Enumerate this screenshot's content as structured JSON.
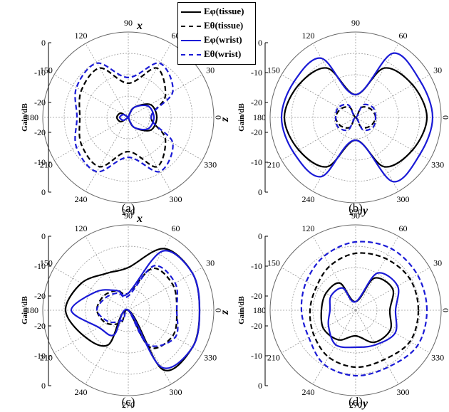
{
  "legend": [
    {
      "label": "Eφ(tissue)",
      "color": "#000000",
      "dash": false
    },
    {
      "label": "Eθ(tissue)",
      "color": "#000000",
      "dash": true
    },
    {
      "label": "Eφ(wrist)",
      "color": "#1a1ad6",
      "dash": false
    },
    {
      "label": "Eθ(wrist)",
      "color": "#1a1ad6",
      "dash": true
    }
  ],
  "chart_data": [
    {
      "type": "line",
      "coordinate_system": "polar",
      "panel_label": "(a)",
      "ylabel": "Gain/dB",
      "radial_ticks": [
        "0",
        "-10",
        "-20",
        "-20",
        "-10",
        "0"
      ],
      "radial_range_dB": [
        -30,
        0
      ],
      "angle_ticks_deg": [
        0,
        30,
        60,
        90,
        120,
        150,
        180,
        210,
        240,
        270,
        300,
        330
      ],
      "axis_labels": [
        {
          "text": "x",
          "angle": 90
        },
        {
          "text": "z",
          "angle": 0
        }
      ],
      "grid": true,
      "series": [
        {
          "name": "Eφ(tissue)",
          "angle": [
            0,
            30,
            60,
            90,
            120,
            150,
            180,
            210,
            240,
            270,
            300,
            330
          ],
          "gain_dB": [
            -20,
            -21,
            -26,
            -30,
            -30,
            -27,
            -26,
            -27,
            -30,
            -30,
            -26,
            -21
          ]
        },
        {
          "name": "Eθ(tissue)",
          "angle": [
            0,
            30,
            60,
            90,
            120,
            150,
            180,
            210,
            240,
            270,
            300,
            330
          ],
          "gain_dB": [
            -22,
            -15,
            -10,
            -18,
            -10,
            -11,
            -13,
            -11,
            -10,
            -18,
            -10,
            -15
          ]
        },
        {
          "name": "Eφ(wrist)",
          "angle": [
            0,
            30,
            60,
            90,
            120,
            150,
            180,
            210,
            240,
            270,
            300,
            330
          ],
          "gain_dB": [
            -21,
            -22,
            -26,
            -30,
            -30,
            -28,
            -27,
            -28,
            -30,
            -30,
            -26,
            -22
          ]
        },
        {
          "name": "Eθ(wrist)",
          "angle": [
            0,
            30,
            60,
            90,
            120,
            150,
            180,
            210,
            240,
            270,
            300,
            330
          ],
          "gain_dB": [
            -22,
            -12,
            -8,
            -16,
            -8,
            -9,
            -12,
            -9,
            -8,
            -16,
            -8,
            -12
          ]
        }
      ]
    },
    {
      "type": "line",
      "coordinate_system": "polar",
      "panel_label": "(b)",
      "ylabel": "Gain/dB",
      "radial_ticks": [
        "0",
        "-10",
        "-20",
        "-20",
        "-10",
        "0"
      ],
      "radial_range_dB": [
        -30,
        0
      ],
      "angle_ticks_deg": [
        0,
        30,
        60,
        90,
        120,
        150,
        180,
        210,
        240,
        270,
        300,
        330
      ],
      "axis_labels": [
        {
          "text": "z",
          "angle": 0
        },
        {
          "text": "y",
          "angle": 270
        }
      ],
      "grid": true,
      "series": [
        {
          "name": "Eφ(tissue)",
          "angle": [
            0,
            30,
            60,
            90,
            120,
            150,
            180,
            210,
            240,
            270,
            300,
            330
          ],
          "gain_dB": [
            -5,
            -7,
            -10,
            -22,
            -10,
            -7,
            -5,
            -7,
            -10,
            -22,
            -10,
            -7
          ]
        },
        {
          "name": "Eθ(tissue)",
          "angle": [
            0,
            30,
            60,
            90,
            120,
            150,
            180,
            210,
            240,
            270,
            300,
            330
          ],
          "gain_dB": [
            -23,
            -24,
            -26,
            -30,
            -26,
            -24,
            -23,
            -24,
            -26,
            -30,
            -26,
            -24
          ]
        },
        {
          "name": "Eφ(wrist)",
          "angle": [
            0,
            30,
            60,
            90,
            120,
            150,
            180,
            210,
            240,
            270,
            300,
            330
          ],
          "gain_dB": [
            -3,
            -4,
            -4,
            -22,
            -6,
            -5,
            -4,
            -5,
            -6,
            -22,
            -4,
            -4
          ]
        },
        {
          "name": "Eθ(wrist)",
          "angle": [
            0,
            30,
            60,
            90,
            120,
            150,
            180,
            210,
            240,
            270,
            300,
            330
          ],
          "gain_dB": [
            -23,
            -23,
            -25,
            -30,
            -25,
            -23,
            -23,
            -23,
            -25,
            -30,
            -25,
            -23
          ]
        }
      ]
    },
    {
      "type": "line",
      "coordinate_system": "polar",
      "panel_label": "(c)",
      "ylabel": "Gain/dB",
      "radial_ticks": [
        "0",
        "-10",
        "-20",
        "-20",
        "-10",
        "0"
      ],
      "radial_range_dB": [
        -30,
        0
      ],
      "angle_ticks_deg": [
        0,
        30,
        60,
        90,
        120,
        150,
        180,
        210,
        240,
        270,
        300,
        330
      ],
      "axis_labels": [
        {
          "text": "x",
          "angle": 90
        },
        {
          "text": "z",
          "angle": 0
        }
      ],
      "grid": true,
      "series": [
        {
          "name": "Eφ(tissue)",
          "angle": [
            0,
            30,
            60,
            90,
            120,
            150,
            180,
            210,
            240,
            270,
            300,
            330
          ],
          "gain_dB": [
            -5,
            -4,
            -5,
            -15,
            -15,
            -11,
            -8,
            -12,
            -16,
            -30,
            -6,
            -4
          ]
        },
        {
          "name": "Eθ(tissue)",
          "angle": [
            0,
            30,
            60,
            90,
            120,
            150,
            180,
            210,
            240,
            270,
            300,
            330
          ],
          "gain_dB": [
            -13,
            -12,
            -13,
            -24,
            -22,
            -20,
            -19,
            -21,
            -25,
            -30,
            -15,
            -12
          ]
        },
        {
          "name": "Eφ(wrist)",
          "angle": [
            0,
            30,
            60,
            90,
            120,
            150,
            180,
            210,
            240,
            270,
            300,
            330
          ],
          "gain_dB": [
            -5,
            -4,
            -6,
            -24,
            -22,
            -17,
            -10,
            -18,
            -20,
            -30,
            -7,
            -4
          ]
        },
        {
          "name": "Eθ(wrist)",
          "angle": [
            0,
            30,
            60,
            90,
            120,
            150,
            180,
            210,
            240,
            270,
            300,
            330
          ],
          "gain_dB": [
            -13,
            -11,
            -12,
            -25,
            -23,
            -21,
            -19,
            -22,
            -26,
            -30,
            -16,
            -11
          ]
        }
      ]
    },
    {
      "type": "line",
      "coordinate_system": "polar",
      "panel_label": "(d)",
      "ylabel": "Gain/dB",
      "radial_ticks": [
        "0",
        "-10",
        "-20",
        "-20",
        "-10",
        "0"
      ],
      "radial_range_dB": [
        -30,
        0
      ],
      "angle_ticks_deg": [
        0,
        30,
        60,
        90,
        120,
        150,
        180,
        210,
        240,
        270,
        300,
        330
      ],
      "axis_labels": [
        {
          "text": "z",
          "angle": 0
        },
        {
          "text": "y",
          "angle": 270
        }
      ],
      "grid": true,
      "series": [
        {
          "name": "Eφ(tissue)",
          "angle": [
            0,
            30,
            60,
            90,
            120,
            150,
            180,
            210,
            240,
            270,
            300,
            330
          ],
          "gain_dB": [
            -18,
            -15,
            -17,
            -27,
            -19,
            -18,
            -18,
            -17,
            -18,
            -21,
            -17,
            -16
          ]
        },
        {
          "name": "Eθ(tissue)",
          "angle": [
            0,
            30,
            60,
            90,
            120,
            150,
            180,
            210,
            240,
            270,
            300,
            330
          ],
          "gain_dB": [
            -8,
            -8,
            -9,
            -10,
            -12,
            -14,
            -14,
            -13,
            -11,
            -10,
            -10,
            -8
          ]
        },
        {
          "name": "Eφ(wrist)",
          "angle": [
            0,
            30,
            60,
            90,
            120,
            150,
            180,
            210,
            240,
            270,
            300,
            330
          ],
          "gain_dB": [
            -16,
            -13,
            -15,
            -27,
            -21,
            -20,
            -21,
            -19,
            -16,
            -17,
            -16,
            -14
          ]
        },
        {
          "name": "Eθ(wrist)",
          "angle": [
            0,
            30,
            60,
            90,
            120,
            150,
            180,
            210,
            240,
            270,
            300,
            330
          ],
          "gain_dB": [
            -5,
            -5,
            -5,
            -6,
            -8,
            -10,
            -11,
            -11,
            -8,
            -7,
            -7,
            -5
          ]
        }
      ]
    }
  ]
}
